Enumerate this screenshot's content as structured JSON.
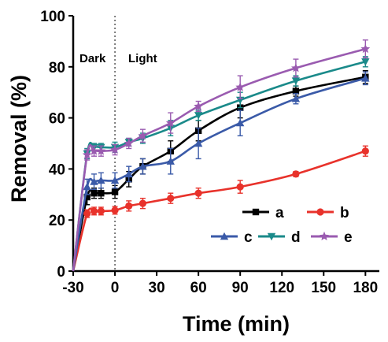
{
  "chart_data": {
    "type": "line",
    "xlabel": "Time (min)",
    "ylabel": "Removal (%)",
    "xlim": [
      -30,
      190
    ],
    "ylim": [
      0,
      100
    ],
    "x_ticks": [
      "-30",
      "0",
      "30",
      "60",
      "90",
      "120",
      "150",
      "180"
    ],
    "y_ticks": [
      "0",
      "20",
      "40",
      "60",
      "80",
      "100"
    ],
    "annotations": {
      "dark": "Dark",
      "light": "Light"
    },
    "divider_x": 0,
    "legend_placement": "bottom-right",
    "series": [
      {
        "name": "a",
        "color": "#000000",
        "marker": "square",
        "x": [
          -20,
          -15,
          -10,
          0,
          10,
          20,
          40,
          60,
          90,
          130,
          180
        ],
        "y": [
          29,
          30.5,
          30.5,
          31,
          36,
          41,
          47,
          55,
          64,
          70.5,
          76
        ],
        "err": [
          3,
          2,
          2,
          2.5,
          3,
          3,
          4,
          4,
          4,
          2,
          2.5
        ]
      },
      {
        "name": "b",
        "color": "#e8322b",
        "marker": "circle",
        "x": [
          -20,
          -15,
          -10,
          0,
          10,
          20,
          40,
          60,
          90,
          130,
          180
        ],
        "y": [
          22.5,
          23.5,
          23.5,
          23.8,
          25.5,
          26.5,
          28.5,
          30.5,
          33,
          38,
          47
        ],
        "err": [
          1.5,
          1.5,
          1.5,
          1.5,
          2,
          2,
          2,
          2,
          2.5,
          1,
          2
        ]
      },
      {
        "name": "c",
        "color": "#3a5aa8",
        "marker": "triangle",
        "x": [
          -20,
          -15,
          -10,
          0,
          10,
          20,
          40,
          60,
          90,
          130,
          180
        ],
        "y": [
          33,
          35,
          35.5,
          35.5,
          38,
          41,
          43,
          50,
          58,
          67.5,
          75.5
        ],
        "err": [
          3,
          3,
          3,
          3,
          3,
          3,
          5,
          6,
          5,
          2,
          2.5
        ]
      },
      {
        "name": "d",
        "color": "#1a8a8a",
        "marker": "triangle-down",
        "x": [
          -20,
          -15,
          -10,
          0,
          10,
          20,
          40,
          60,
          90,
          130,
          180
        ],
        "y": [
          46,
          48.5,
          48.5,
          48.5,
          50.5,
          52,
          56,
          61,
          67,
          74.5,
          82
        ],
        "err": [
          2,
          1.5,
          1.5,
          2,
          1.5,
          2,
          3,
          2,
          3,
          2,
          2
        ]
      },
      {
        "name": "e",
        "color": "#9a5bb0",
        "marker": "star",
        "x": [
          -20,
          -15,
          -10,
          0,
          10,
          20,
          40,
          60,
          90,
          130,
          180
        ],
        "y": [
          45.5,
          47,
          47,
          47.5,
          50,
          53,
          58,
          64.5,
          72,
          79.5,
          87
        ],
        "err": [
          2,
          2,
          2,
          2,
          2,
          2.5,
          4,
          2,
          4.5,
          3.5,
          3.5
        ]
      }
    ]
  }
}
